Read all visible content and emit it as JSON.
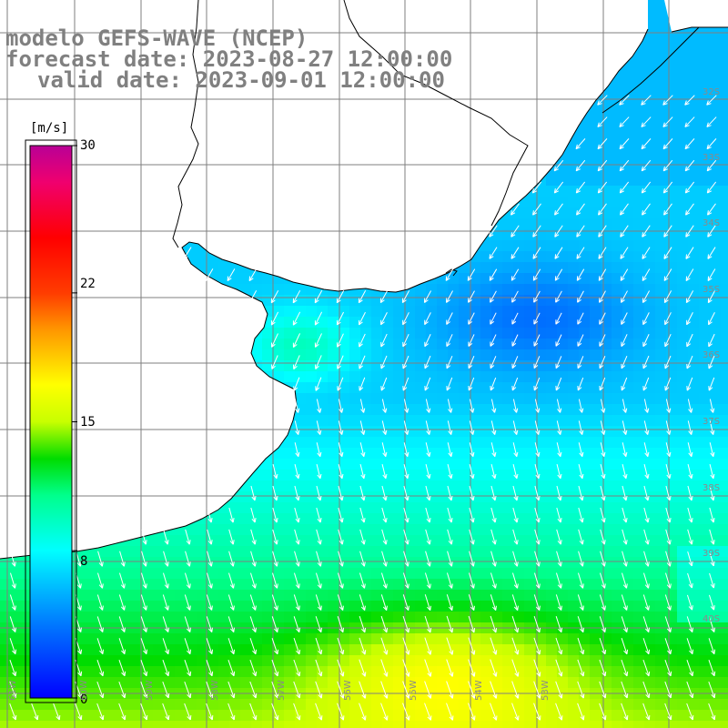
{
  "title": {
    "line1": "modelo GEFS-WAVE (NCEP)",
    "line2": "forecast date: 2023-08-27 12:00:00",
    "line3": "valid date: 2023-09-01 12:00:00"
  },
  "colorbar": {
    "unit": "[m/s]",
    "ticks": [
      {
        "label": "30",
        "value": 30
      },
      {
        "label": "22",
        "value": 22
      },
      {
        "label": "15",
        "value": 15
      },
      {
        "label": "8",
        "value": 8
      },
      {
        "label": "0",
        "value": 0
      }
    ],
    "min": 0,
    "max": 30,
    "colors": [
      "#0000ff",
      "#00aaff",
      "#00ffff",
      "#00ff80",
      "#00dd00",
      "#88ff00",
      "#ffff00",
      "#ffaa00",
      "#ff5500",
      "#ff0000",
      "#ff0066",
      "#bb0099"
    ]
  },
  "map": {
    "lat_labels": [
      "32S",
      "33S",
      "34S",
      "35S",
      "36S",
      "37S",
      "38S",
      "39S",
      "40S"
    ],
    "lon_labels": [
      "61W",
      "60W",
      "59W",
      "58W",
      "57W",
      "56W",
      "55W",
      "54W",
      "53W"
    ],
    "wind_direction": "SSW",
    "land_color": "#ffffff",
    "coastline_color": "#000000",
    "grid_color": "#7f7f7f"
  }
}
